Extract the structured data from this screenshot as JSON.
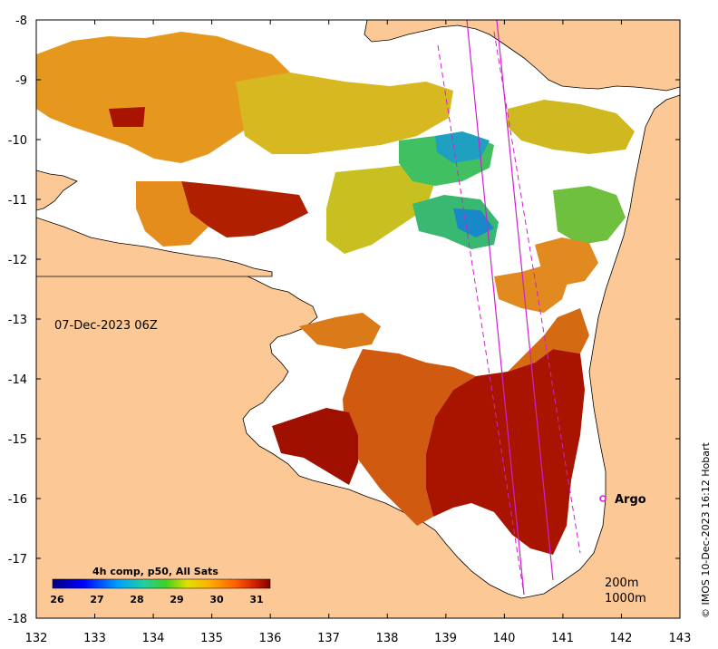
{
  "map": {
    "date_label": "07-Dec-2023 06Z",
    "credit": "© IMOS 10-Dec-2023 16:12 Hobart",
    "lon_ticks": [
      "132",
      "133",
      "134",
      "135",
      "136",
      "137",
      "138",
      "139",
      "140",
      "141",
      "142",
      "143"
    ],
    "lat_ticks": [
      "-8",
      "-9",
      "-10",
      "-11",
      "-12",
      "-13",
      "-14",
      "-15",
      "-16",
      "-17",
      "-18"
    ],
    "colorbar": {
      "title": "4h comp, p50, All Sats",
      "ticks": [
        "26",
        "27",
        "28",
        "29",
        "30",
        "31"
      ]
    },
    "argo": {
      "label": "Argo",
      "color": "#e020e0"
    },
    "contours": {
      "label_200": "200m",
      "label_1000": "1000m"
    },
    "colors": {
      "land": "#fcc896",
      "ocean": "#ffffff",
      "track": "#d020d0"
    }
  },
  "chart_data": {
    "type": "heatmap",
    "title": "4h comp, p50, All Sats",
    "xlabel": "",
    "ylabel": "",
    "xlim": [
      132,
      143
    ],
    "ylim": [
      -18,
      -8
    ],
    "color_scale": {
      "min": 26,
      "max": 31.5,
      "ticks": [
        26,
        27,
        28,
        29,
        30,
        31
      ]
    },
    "annotations": [
      {
        "text": "07-Dec-2023 06Z"
      },
      {
        "text": "Argo",
        "lon": 141.7,
        "lat": -16.0
      },
      {
        "text": "200m"
      },
      {
        "text": "1000m"
      }
    ]
  }
}
